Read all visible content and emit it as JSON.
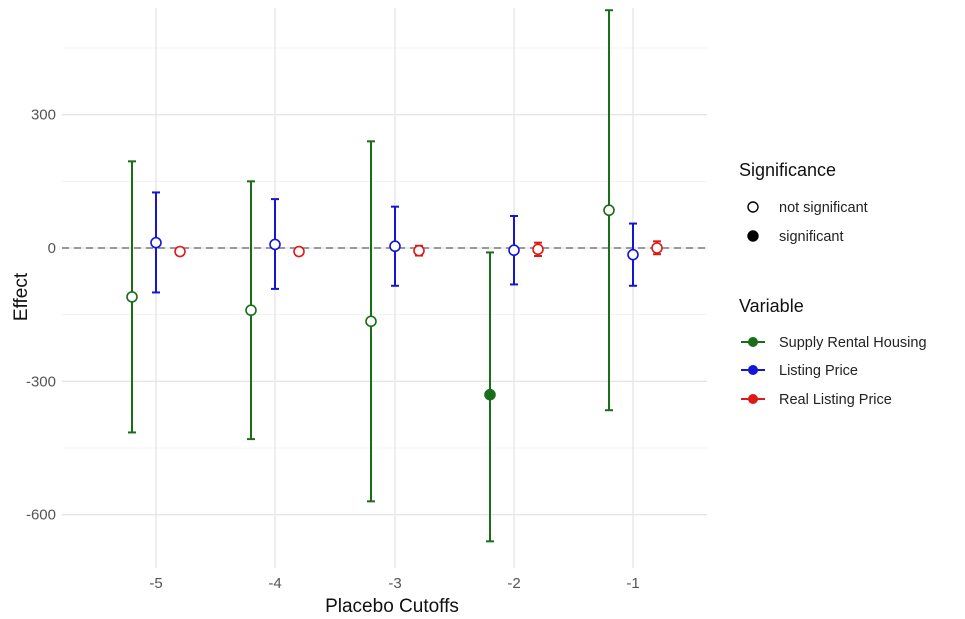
{
  "chart_data": {
    "type": "scatter",
    "subtype": "point-with-errorbars",
    "title": "",
    "xlabel": "Placebo Cutoffs",
    "ylabel": "Effect",
    "x_categories": [
      -5,
      -4,
      -3,
      -2,
      -1
    ],
    "x_tick_labels": [
      "-5",
      "-4",
      "-3",
      "-2",
      "-1"
    ],
    "ylim": [
      -720,
      540
    ],
    "y_ticks": [
      300,
      0,
      -300,
      -600
    ],
    "y_tick_labels": [
      "300",
      "0",
      "-300",
      "-600"
    ],
    "zero_reference_line": true,
    "grid": true,
    "legend_placement": "right",
    "series": [
      {
        "name": "Supply Rental Housing",
        "color": "#1a6e1a",
        "points": [
          {
            "x": -5,
            "y": -110,
            "ymin": -415,
            "ymax": 195,
            "significant": false
          },
          {
            "x": -4,
            "y": -140,
            "ymin": -430,
            "ymax": 150,
            "significant": false
          },
          {
            "x": -3,
            "y": -165,
            "ymin": -570,
            "ymax": 240,
            "significant": false
          },
          {
            "x": -2,
            "y": -330,
            "ymin": -660,
            "ymax": -10,
            "significant": true
          },
          {
            "x": -1,
            "y": 85,
            "ymin": -365,
            "ymax": 535,
            "significant": false
          }
        ]
      },
      {
        "name": "Listing Price",
        "color": "#1515d6",
        "points": [
          {
            "x": -5,
            "y": 12,
            "ymin": -100,
            "ymax": 125,
            "significant": false
          },
          {
            "x": -4,
            "y": 8,
            "ymin": -92,
            "ymax": 110,
            "significant": false
          },
          {
            "x": -3,
            "y": 4,
            "ymin": -85,
            "ymax": 93,
            "significant": false
          },
          {
            "x": -2,
            "y": -5,
            "ymin": -82,
            "ymax": 72,
            "significant": false
          },
          {
            "x": -1,
            "y": -15,
            "ymin": -85,
            "ymax": 55,
            "significant": false
          }
        ]
      },
      {
        "name": "Real Listing Price",
        "color": "#e01818",
        "points": [
          {
            "x": -5,
            "y": -8,
            "ymin": -16,
            "ymax": 0,
            "significant": false
          },
          {
            "x": -4,
            "y": -8,
            "ymin": -16,
            "ymax": 0,
            "significant": false
          },
          {
            "x": -3,
            "y": -6,
            "ymin": -17,
            "ymax": 5,
            "significant": false
          },
          {
            "x": -2,
            "y": -3,
            "ymin": -18,
            "ymax": 12,
            "significant": false
          },
          {
            "x": -1,
            "y": 0,
            "ymin": -14,
            "ymax": 15,
            "significant": false
          }
        ]
      }
    ]
  },
  "legend": {
    "significance_title": "Significance",
    "significance_items": [
      {
        "label": "not significant",
        "filled": false
      },
      {
        "label": "significant",
        "filled": true
      }
    ],
    "variable_title": "Variable",
    "variable_items": [
      {
        "label": "Supply Rental Housing",
        "color": "#1a6e1a"
      },
      {
        "label": "Listing Price",
        "color": "#1515d6"
      },
      {
        "label": "Real Listing Price",
        "color": "#e01818"
      }
    ]
  }
}
